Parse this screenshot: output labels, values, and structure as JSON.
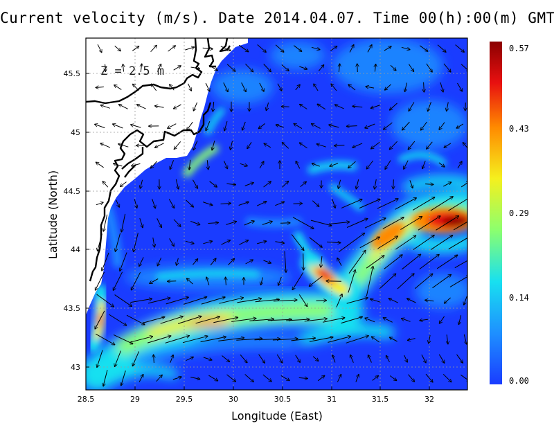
{
  "title": "Current velocity (m/s). Date 2014.04.07. Time 00(h):00(m) GMT",
  "depth_label": "Z = 2.5 m",
  "x_axis": {
    "label": "Longitude (East)",
    "range": [
      28.5,
      32.4
    ],
    "ticks": [
      "28.5",
      "29",
      "29.5",
      "30",
      "30.5",
      "31",
      "31.5",
      "32"
    ]
  },
  "y_axis": {
    "label": "Latitude (North)",
    "range": [
      42.8,
      45.8
    ],
    "ticks": [
      "43",
      "43.5",
      "44",
      "44.5",
      "45",
      "45.5"
    ]
  },
  "colorbar": {
    "units": "m/s",
    "min": 0.0,
    "max": 0.57,
    "tick_labels": [
      "0.00",
      "0.14",
      "0.29",
      "0.43",
      "0.57"
    ],
    "colors": [
      "#1a3cff",
      "#1e90ff",
      "#18e0f0",
      "#8cff6e",
      "#f5f01e",
      "#ff8a00",
      "#e81010",
      "#8a0000"
    ]
  },
  "colors": {
    "land": "#ffffff",
    "coastline": "#000000",
    "sea_background": "#1a3cff",
    "grid": "#9a9a9a"
  },
  "chart_data": {
    "type": "heatmap",
    "title": "Current velocity (m/s). Date 2014.04.07. Time 00(h):00(m) GMT",
    "xlabel": "Longitude (East)",
    "ylabel": "Latitude (North)",
    "xlim": [
      28.5,
      32.4
    ],
    "ylim": [
      42.8,
      45.8
    ],
    "grid": true,
    "value_range": [
      0.0,
      0.57
    ],
    "speed_maxima": [
      {
        "lon": 32.2,
        "lat": 44.25,
        "speed": 0.57
      },
      {
        "lon": 30.95,
        "lat": 43.75,
        "speed": 0.5
      },
      {
        "lon": 31.55,
        "lat": 44.15,
        "speed": 0.45
      },
      {
        "lon": 29.6,
        "lat": 43.35,
        "speed": 0.4
      },
      {
        "lon": 28.65,
        "lat": 43.4,
        "speed": 0.4
      }
    ]
  }
}
